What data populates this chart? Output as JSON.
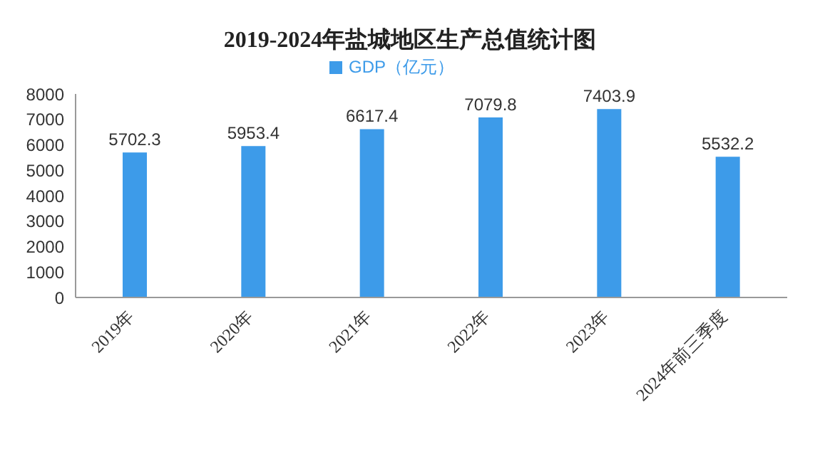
{
  "chart_data": {
    "type": "bar",
    "title": "2019-2024年盐城地区生产总值统计图",
    "categories": [
      "2019年",
      "2020年",
      "2021年",
      "2022年",
      "2023年",
      "2024年前三季度"
    ],
    "series": [
      {
        "name": "GDP（亿元）",
        "color": "#3d9be9",
        "values": [
          5702.3,
          5953.4,
          6617.4,
          7079.8,
          7403.9,
          5532.2
        ]
      }
    ],
    "ylim": [
      0,
      8000
    ],
    "yticks": [
      0,
      1000,
      2000,
      3000,
      4000,
      5000,
      6000,
      7000,
      8000
    ],
    "grid": false,
    "legend": "top",
    "data_labels": true
  }
}
